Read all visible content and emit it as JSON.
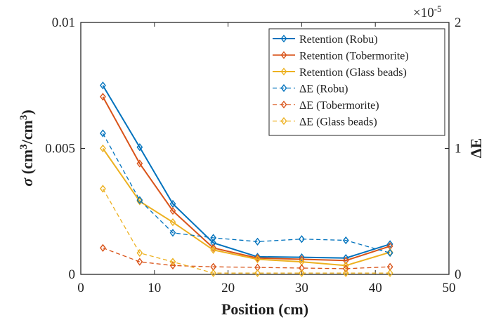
{
  "chart_data": {
    "type": "line",
    "xlabel": "Position (cm)",
    "ylabel_left": "σ (cm3/cm3)",
    "ylabel_right": "ΔE",
    "xlim": [
      0,
      50
    ],
    "ylim_left": [
      0,
      0.01
    ],
    "ylim_right": [
      0,
      2
    ],
    "right_axis_multiplier": "×10-5",
    "x_ticks": [
      0,
      10,
      20,
      30,
      40,
      50
    ],
    "x_tick_labels": [
      "0",
      "10",
      "20",
      "30",
      "40",
      "50"
    ],
    "y_left_ticks": [
      0,
      0.005,
      0.01
    ],
    "y_left_tick_labels": [
      "0",
      "0.005",
      "0.01"
    ],
    "y_right_ticks": [
      0,
      1,
      2
    ],
    "y_right_tick_labels": [
      "0",
      "1",
      "2"
    ],
    "grid": false,
    "legend_position": "top-right",
    "series": [
      {
        "name": "Retention (Robu)",
        "axis": "left",
        "style": "solid",
        "color": "#0072BD",
        "x": [
          3,
          8,
          12.5,
          18,
          24,
          30,
          36,
          42
        ],
        "y": [
          0.0075,
          0.00505,
          0.0028,
          0.00125,
          0.0007,
          0.00068,
          0.00065,
          0.0012
        ]
      },
      {
        "name": "Retention (Tobermorite)",
        "axis": "left",
        "style": "solid",
        "color": "#D95319",
        "x": [
          3,
          8,
          12.5,
          18,
          24,
          30,
          36,
          42
        ],
        "y": [
          0.00705,
          0.0044,
          0.00252,
          0.00105,
          0.00065,
          0.0006,
          0.00055,
          0.00112
        ]
      },
      {
        "name": "Retention (Glass beads)",
        "axis": "left",
        "style": "solid",
        "color": "#EDB120",
        "x": [
          3,
          8,
          12.5,
          18,
          24,
          30,
          36,
          42
        ],
        "y": [
          0.005,
          0.0029,
          0.00207,
          0.00097,
          0.0006,
          0.0005,
          0.00035,
          0.00088
        ]
      },
      {
        "name": "ΔE (Robu)",
        "axis": "right",
        "style": "dashed",
        "color": "#0072BD",
        "x": [
          3,
          8,
          12.5,
          18,
          24,
          30,
          36,
          42
        ],
        "y": [
          1.12,
          0.59,
          0.33,
          0.29,
          0.26,
          0.28,
          0.27,
          0.17
        ]
      },
      {
        "name": "ΔE (Tobermorite)",
        "axis": "right",
        "style": "dashed",
        "color": "#D95319",
        "x": [
          3,
          8,
          12.5,
          18,
          24,
          30,
          36,
          42
        ],
        "y": [
          0.21,
          0.1,
          0.07,
          0.06,
          0.055,
          0.05,
          0.045,
          0.06
        ]
      },
      {
        "name": "ΔE (Glass beads)",
        "axis": "right",
        "style": "dashed",
        "color": "#EDB120",
        "x": [
          3,
          8,
          12.5,
          18,
          24,
          30,
          36,
          42
        ],
        "y": [
          0.68,
          0.17,
          0.1,
          0.01,
          0.01,
          0.01,
          0.01,
          0.01
        ]
      }
    ]
  }
}
